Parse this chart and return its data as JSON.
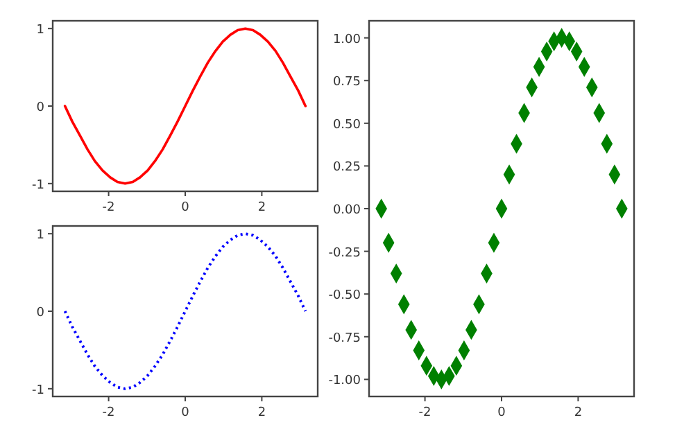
{
  "chart_data": [
    {
      "type": "line",
      "x": [
        -3.14,
        -2.95,
        -2.75,
        -2.55,
        -2.36,
        -2.16,
        -1.96,
        -1.77,
        -1.57,
        -1.37,
        -1.18,
        -0.98,
        -0.79,
        -0.59,
        -0.39,
        -0.2,
        0,
        0.2,
        0.39,
        0.59,
        0.79,
        0.98,
        1.18,
        1.37,
        1.57,
        1.77,
        1.96,
        2.16,
        2.36,
        2.55,
        2.75,
        2.95,
        3.14
      ],
      "line_style": "solid",
      "xlim": [
        -3.46,
        3.46
      ],
      "ylim": [
        -1.1,
        1.1
      ],
      "xticks": [
        -2,
        0,
        2
      ],
      "yticks": [
        -1,
        0,
        1
      ],
      "series": [
        {
          "color": "#ff0000",
          "values": [
            0,
            -0.2,
            -0.38,
            -0.56,
            -0.71,
            -0.83,
            -0.92,
            -0.98,
            -1,
            -0.98,
            -0.92,
            -0.83,
            -0.71,
            -0.56,
            -0.38,
            -0.2,
            0,
            0.2,
            0.38,
            0.56,
            0.71,
            0.83,
            0.92,
            0.98,
            1,
            0.98,
            0.92,
            0.83,
            0.71,
            0.56,
            0.38,
            0.2,
            0
          ]
        }
      ]
    },
    {
      "type": "line",
      "x": [
        -3.14,
        -2.95,
        -2.75,
        -2.55,
        -2.36,
        -2.16,
        -1.96,
        -1.77,
        -1.57,
        -1.37,
        -1.18,
        -0.98,
        -0.79,
        -0.59,
        -0.39,
        -0.2,
        0,
        0.2,
        0.39,
        0.59,
        0.79,
        0.98,
        1.18,
        1.37,
        1.57,
        1.77,
        1.96,
        2.16,
        2.36,
        2.55,
        2.75,
        2.95,
        3.14
      ],
      "line_style": "dotted",
      "xlim": [
        -3.46,
        3.46
      ],
      "ylim": [
        -1.1,
        1.1
      ],
      "xticks": [
        -2,
        0,
        2
      ],
      "yticks": [
        -1,
        0,
        1
      ],
      "series": [
        {
          "color": "#0000ff",
          "values": [
            0,
            -0.2,
            -0.38,
            -0.56,
            -0.71,
            -0.83,
            -0.92,
            -0.98,
            -1,
            -0.98,
            -0.92,
            -0.83,
            -0.71,
            -0.56,
            -0.38,
            -0.2,
            0,
            0.2,
            0.38,
            0.56,
            0.71,
            0.83,
            0.92,
            0.98,
            1,
            0.98,
            0.92,
            0.83,
            0.71,
            0.56,
            0.38,
            0.2,
            0
          ]
        }
      ]
    },
    {
      "type": "scatter",
      "x": [
        -3.14,
        -2.95,
        -2.75,
        -2.55,
        -2.36,
        -2.16,
        -1.96,
        -1.77,
        -1.57,
        -1.37,
        -1.18,
        -0.98,
        -0.79,
        -0.59,
        -0.39,
        -0.2,
        0,
        0.2,
        0.39,
        0.59,
        0.79,
        0.98,
        1.18,
        1.37,
        1.57,
        1.77,
        1.96,
        2.16,
        2.36,
        2.55,
        2.75,
        2.95,
        3.14
      ],
      "marker": "diamond",
      "xlim": [
        -3.46,
        3.46
      ],
      "ylim": [
        -1.1,
        1.1
      ],
      "xticks": [
        -2,
        0,
        2
      ],
      "yticks": [
        {
          "value": -1,
          "label": "-1.00"
        },
        {
          "value": -0.75,
          "label": "-0.75"
        },
        {
          "value": -0.5,
          "label": "-0.50"
        },
        {
          "value": -0.25,
          "label": "-0.25"
        },
        {
          "value": 0,
          "label": "0.00"
        },
        {
          "value": 0.25,
          "label": "0.25"
        },
        {
          "value": 0.5,
          "label": "0.50"
        },
        {
          "value": 0.75,
          "label": "0.75"
        },
        {
          "value": 1,
          "label": "1.00"
        }
      ],
      "series": [
        {
          "color": "#008000",
          "values": [
            0,
            -0.2,
            -0.38,
            -0.56,
            -0.71,
            -0.83,
            -0.92,
            -0.98,
            -1,
            -0.98,
            -0.92,
            -0.83,
            -0.71,
            -0.56,
            -0.38,
            -0.2,
            0,
            0.2,
            0.38,
            0.56,
            0.71,
            0.83,
            0.92,
            0.98,
            1,
            0.98,
            0.92,
            0.83,
            0.71,
            0.56,
            0.38,
            0.2,
            0
          ]
        }
      ]
    }
  ]
}
